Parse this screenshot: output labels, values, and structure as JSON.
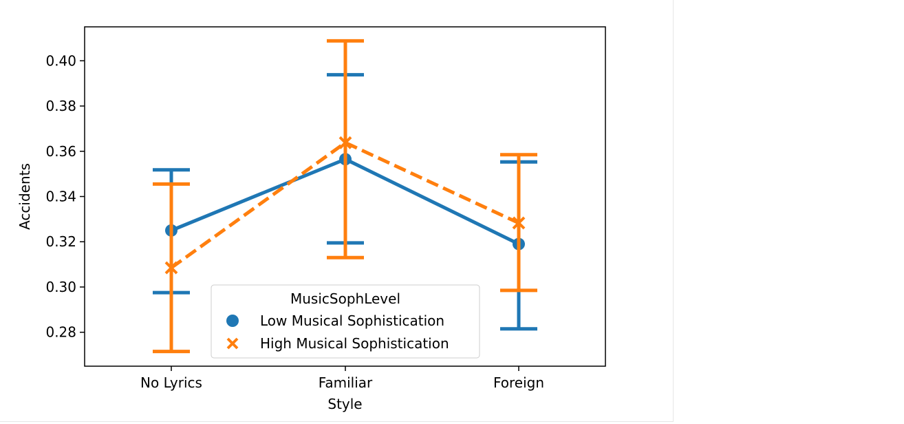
{
  "chart_data": {
    "type": "line",
    "xlabel": "Style",
    "ylabel": "Accidents",
    "categories": [
      "No Lyrics",
      "Familiar",
      "Foreign"
    ],
    "ylim": [
      0.265,
      0.415
    ],
    "yticks": [
      0.28,
      0.3,
      0.32,
      0.34,
      0.36,
      0.38,
      0.4
    ],
    "ytick_labels": [
      "0.28",
      "0.30",
      "0.32",
      "0.34",
      "0.36",
      "0.38",
      "0.40"
    ],
    "grid": false,
    "legend": {
      "title": "MusicSophLevel",
      "placement": "lower-center"
    },
    "series": [
      {
        "name": "Low Musical Sophistication",
        "color": "#1f77b4",
        "marker": "circle",
        "linestyle": "solid",
        "values": [
          0.325,
          0.3565,
          0.319
        ],
        "ci_low": [
          0.2975,
          0.3195,
          0.2815
        ],
        "ci_high": [
          0.3518,
          0.3938,
          0.3553
        ]
      },
      {
        "name": "High Musical Sophistication",
        "color": "#ff7f0e",
        "marker": "x",
        "linestyle": "dashed",
        "values": [
          0.3085,
          0.3638,
          0.3283
        ],
        "ci_low": [
          0.2715,
          0.313,
          0.2985
        ],
        "ci_high": [
          0.3455,
          0.4088,
          0.3585
        ]
      }
    ]
  }
}
